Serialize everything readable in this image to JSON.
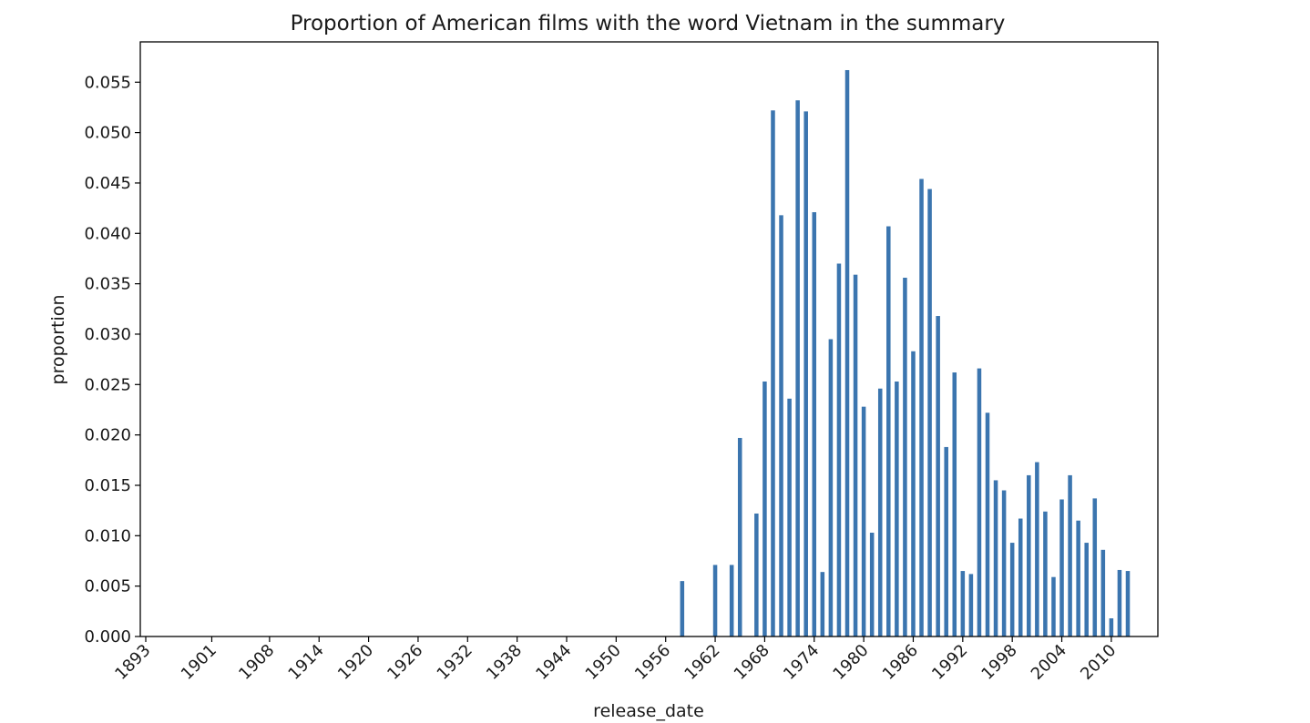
{
  "chart_data": {
    "type": "bar",
    "title": "Proportion of American films with the word Vietnam in the summary",
    "xlabel": "release_date",
    "ylabel": "proportion",
    "ylim": [
      0,
      0.059
    ],
    "yticks": [
      "0.000",
      "0.005",
      "0.010",
      "0.015",
      "0.020",
      "0.025",
      "0.030",
      "0.035",
      "0.040",
      "0.045",
      "0.050",
      "0.055"
    ],
    "xtick_labels": [
      "1893",
      "1901",
      "1908",
      "1914",
      "1920",
      "1926",
      "1932",
      "1938",
      "1944",
      "1950",
      "1956",
      "1962",
      "1968",
      "1974",
      "1980",
      "1986",
      "1992",
      "1998",
      "2004",
      "2010"
    ],
    "grid": false,
    "color": "#3b75af",
    "categories": [
      "1893",
      "1894",
      "1895",
      "1896",
      "1897",
      "1898",
      "1899",
      "1900",
      "1901",
      "1902",
      "1903",
      "1904",
      "1905",
      "1906",
      "1907",
      "1908",
      "1909",
      "1910",
      "1911",
      "1912",
      "1913",
      "1914",
      "1915",
      "1916",
      "1917",
      "1918",
      "1919",
      "1920",
      "1921",
      "1922",
      "1923",
      "1924",
      "1925",
      "1926",
      "1927",
      "1928",
      "1929",
      "1930",
      "1931",
      "1932",
      "1933",
      "1934",
      "1935",
      "1936",
      "1937",
      "1938",
      "1939",
      "1940",
      "1941",
      "1942",
      "1943",
      "1944",
      "1945",
      "1946",
      "1947",
      "1948",
      "1949",
      "1950",
      "1951",
      "1952",
      "1953",
      "1954",
      "1955",
      "1956",
      "1957",
      "1958",
      "1959",
      "1960",
      "1961",
      "1962",
      "1963",
      "1964",
      "1965",
      "1966",
      "1967",
      "1968",
      "1969",
      "1970",
      "1971",
      "1972",
      "1973",
      "1974",
      "1975",
      "1976",
      "1977",
      "1978",
      "1979",
      "1980",
      "1981",
      "1982",
      "1983",
      "1984",
      "1985",
      "1986",
      "1987",
      "1988",
      "1989",
      "1990",
      "1991",
      "1992",
      "1993",
      "1994",
      "1995",
      "1996",
      "1997",
      "1998",
      "1999",
      "2000",
      "2001",
      "2002",
      "2003",
      "2004",
      "2005",
      "2006",
      "2007",
      "2008",
      "2009",
      "2010",
      "2011",
      "2012"
    ],
    "values": [
      0,
      0,
      0,
      0,
      0,
      0,
      0,
      0,
      0,
      0,
      0,
      0,
      0,
      0,
      0,
      0,
      0,
      0,
      0,
      0,
      0,
      0,
      0,
      0,
      0,
      0,
      0,
      0,
      0,
      0,
      0,
      0,
      0,
      0,
      0,
      0,
      0,
      0,
      0,
      0,
      0,
      0,
      0,
      0,
      0,
      0,
      0,
      0,
      0,
      0,
      0,
      0,
      0,
      0,
      0,
      0,
      0,
      0,
      0,
      0,
      0,
      0,
      0,
      0,
      0,
      0.0055,
      0,
      0,
      0,
      0.0071,
      0,
      0.0071,
      0.0197,
      0,
      0.0122,
      0.0253,
      0.0522,
      0.0418,
      0.0236,
      0.0532,
      0.0521,
      0.0421,
      0.0064,
      0.0295,
      0.037,
      0.0562,
      0.0359,
      0.0228,
      0.0103,
      0.0246,
      0.0407,
      0.0253,
      0.0356,
      0.0283,
      0.0454,
      0.0444,
      0.0318,
      0.0188,
      0.0262,
      0.0065,
      0.0062,
      0.0266,
      0.0222,
      0.0155,
      0.0145,
      0.0093,
      0.0117,
      0.016,
      0.0173,
      0.0124,
      0.0059,
      0.0136,
      0.016,
      0.0115,
      0.0093,
      0.0137,
      0.0086,
      0.0018,
      0.0066,
      0.0065
    ]
  }
}
